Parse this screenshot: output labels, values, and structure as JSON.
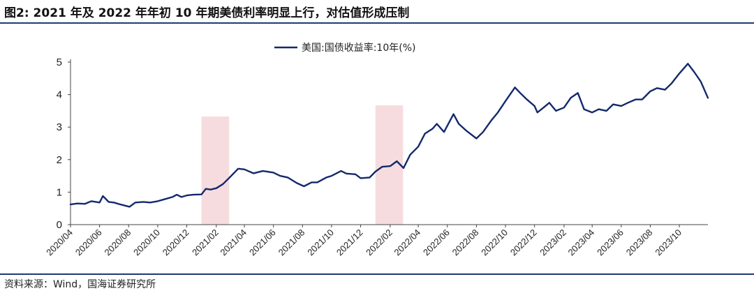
{
  "header": {
    "title": "图2:  2021 年及 2022 年年初 10 年期美债利率明显上行，对估值形成压制"
  },
  "footer": {
    "source": "资料来源：Wind，国海证券研究所"
  },
  "colors": {
    "series": "#13296b",
    "highlight": "#f6dcdf",
    "axis": "#444444",
    "rule": "#1f3a73"
  },
  "chart_data": {
    "type": "line",
    "title": "",
    "xlabel": "",
    "ylabel": "",
    "x_range": [
      "2020-04-01",
      "2023-11-30"
    ],
    "ylim": [
      0,
      5
    ],
    "yticks": [
      0,
      1,
      2,
      3,
      4,
      5
    ],
    "xticks": [
      "2020/04",
      "2020/06",
      "2020/08",
      "2020/10",
      "2020/12",
      "2021/02",
      "2021/04",
      "2021/06",
      "2021/08",
      "2021/10",
      "2021/12",
      "2022/02",
      "2022/04",
      "2022/06",
      "2022/08",
      "2022/10",
      "2022/12",
      "2023/02",
      "2023/04",
      "2023/06",
      "2023/08",
      "2023/10"
    ],
    "grid": false,
    "legend_position": "top-center",
    "highlight_ranges": [
      {
        "start": "2021-01-01",
        "end": "2021-02-28"
      },
      {
        "start": "2022-01-01",
        "end": "2022-02-28"
      }
    ],
    "series": [
      {
        "name": "美国:国债收益率:10年(%)",
        "x": [
          "2020-04-01",
          "2020-04-15",
          "2020-05-01",
          "2020-05-15",
          "2020-06-01",
          "2020-06-08",
          "2020-06-20",
          "2020-07-01",
          "2020-07-15",
          "2020-08-03",
          "2020-08-15",
          "2020-09-01",
          "2020-09-15",
          "2020-10-01",
          "2020-10-15",
          "2020-11-01",
          "2020-11-10",
          "2020-11-20",
          "2020-12-01",
          "2020-12-15",
          "2021-01-01",
          "2021-01-10",
          "2021-01-20",
          "2021-02-01",
          "2021-02-15",
          "2021-03-01",
          "2021-03-19",
          "2021-04-01",
          "2021-04-20",
          "2021-05-10",
          "2021-06-01",
          "2021-06-15",
          "2021-07-01",
          "2021-07-20",
          "2021-08-04",
          "2021-08-20",
          "2021-09-01",
          "2021-09-20",
          "2021-10-01",
          "2021-10-21",
          "2021-11-01",
          "2021-11-20",
          "2021-12-01",
          "2021-12-20",
          "2022-01-01",
          "2022-01-15",
          "2022-02-01",
          "2022-02-15",
          "2022-03-01",
          "2022-03-15",
          "2022-04-01",
          "2022-04-15",
          "2022-05-01",
          "2022-05-10",
          "2022-05-25",
          "2022-06-14",
          "2022-06-25",
          "2022-07-10",
          "2022-08-01",
          "2022-08-15",
          "2022-09-01",
          "2022-09-15",
          "2022-10-01",
          "2022-10-21",
          "2022-11-01",
          "2022-11-15",
          "2022-12-01",
          "2022-12-07",
          "2022-12-20",
          "2023-01-01",
          "2023-01-15",
          "2023-02-01",
          "2023-02-15",
          "2023-03-02",
          "2023-03-15",
          "2023-04-01",
          "2023-04-15",
          "2023-05-01",
          "2023-05-15",
          "2023-06-01",
          "2023-06-15",
          "2023-07-01",
          "2023-07-15",
          "2023-08-01",
          "2023-08-15",
          "2023-09-01",
          "2023-09-15",
          "2023-10-01",
          "2023-10-19",
          "2023-11-01",
          "2023-11-15",
          "2023-11-30"
        ],
        "values": [
          0.62,
          0.65,
          0.64,
          0.72,
          0.68,
          0.88,
          0.7,
          0.68,
          0.62,
          0.55,
          0.68,
          0.7,
          0.68,
          0.72,
          0.78,
          0.85,
          0.92,
          0.85,
          0.9,
          0.92,
          0.93,
          1.1,
          1.08,
          1.12,
          1.25,
          1.45,
          1.72,
          1.7,
          1.58,
          1.65,
          1.6,
          1.5,
          1.45,
          1.28,
          1.18,
          1.3,
          1.3,
          1.45,
          1.5,
          1.65,
          1.57,
          1.55,
          1.43,
          1.45,
          1.63,
          1.78,
          1.8,
          1.95,
          1.74,
          2.15,
          2.4,
          2.8,
          2.95,
          3.1,
          2.85,
          3.4,
          3.1,
          2.9,
          2.65,
          2.85,
          3.2,
          3.45,
          3.8,
          4.22,
          4.05,
          3.85,
          3.65,
          3.45,
          3.6,
          3.75,
          3.5,
          3.6,
          3.9,
          4.05,
          3.55,
          3.45,
          3.55,
          3.5,
          3.7,
          3.65,
          3.75,
          3.85,
          3.85,
          4.1,
          4.2,
          4.15,
          4.35,
          4.65,
          4.95,
          4.7,
          4.4,
          3.9
        ]
      }
    ]
  }
}
